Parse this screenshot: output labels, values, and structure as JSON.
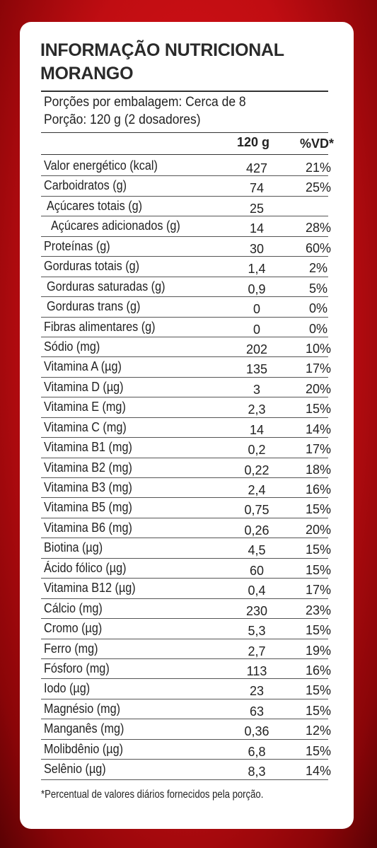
{
  "title": {
    "line1": "INFORMAÇÃO NUTRICIONAL",
    "line2": "MORANGO"
  },
  "portion": {
    "line1": "Porções por embalagem: Cerca de 8",
    "line2": "Porção: 120 g (2 dosadores)"
  },
  "header": {
    "qty": "120 g",
    "vd": "%VD*"
  },
  "rows": [
    {
      "name": "Valor energético (kcal)",
      "qty": "427",
      "vd": "21%"
    },
    {
      "name": "Carboidratos (g)",
      "qty": "74",
      "vd": "25%"
    },
    {
      "name": "Açúcares totais (g)",
      "qty": "25",
      "vd": ""
    },
    {
      "name": "Açúcares adicionados (g)",
      "qty": "14",
      "vd": "28%"
    },
    {
      "name": "Proteínas (g)",
      "qty": "30",
      "vd": "60%"
    },
    {
      "name": "Gorduras totais (g)",
      "qty": "1,4",
      "vd": "2%"
    },
    {
      "name": "Gorduras saturadas (g)",
      "qty": "0,9",
      "vd": "5%"
    },
    {
      "name": "Gorduras trans (g)",
      "qty": "0",
      "vd": "0%"
    },
    {
      "name": "Fibras alimentares (g)",
      "qty": "0",
      "vd": "0%"
    },
    {
      "name": "Sódio (mg)",
      "qty": "202",
      "vd": "10%"
    },
    {
      "name": "Vitamina A (µg)",
      "qty": "135",
      "vd": "17%"
    },
    {
      "name": "Vitamina D (µg)",
      "qty": "3",
      "vd": "20%"
    },
    {
      "name": "Vitamina E (mg)",
      "qty": "2,3",
      "vd": "15%"
    },
    {
      "name": "Vitamina C (mg)",
      "qty": "14",
      "vd": "14%"
    },
    {
      "name": "Vitamina B1 (mg)",
      "qty": "0,2",
      "vd": "17%"
    },
    {
      "name": "Vitamina B2 (mg)",
      "qty": "0,22",
      "vd": "18%"
    },
    {
      "name": "Vitamina B3 (mg)",
      "qty": "2,4",
      "vd": "16%"
    },
    {
      "name": "Vitamina B5 (mg)",
      "qty": "0,75",
      "vd": "15%"
    },
    {
      "name": "Vitamina B6 (mg)",
      "qty": "0,26",
      "vd": "20%"
    },
    {
      "name": "Biotina (µg)",
      "qty": "4,5",
      "vd": "15%"
    },
    {
      "name": "Ácido fólico (µg)",
      "qty": "60",
      "vd": "15%"
    },
    {
      "name": "Vitamina B12 (µg)",
      "qty": "0,4",
      "vd": "17%"
    },
    {
      "name": "Cálcio (mg)",
      "qty": "230",
      "vd": "23%"
    },
    {
      "name": "Cromo (µg)",
      "qty": "5,3",
      "vd": "15%"
    },
    {
      "name": "Ferro (mg)",
      "qty": "2,7",
      "vd": "19%"
    },
    {
      "name": "Fósforo (mg)",
      "qty": "113",
      "vd": "16%"
    },
    {
      "name": "Iodo (µg)",
      "qty": "23",
      "vd": "15%"
    },
    {
      "name": "Magnésio (mg)",
      "qty": "63",
      "vd": "15%"
    },
    {
      "name": "Manganês (mg)",
      "qty": "0,36",
      "vd": "12%"
    },
    {
      "name": "Molibdênio (µg)",
      "qty": "6,8",
      "vd": "15%"
    },
    {
      "name": "Selênio (µg)",
      "qty": "8,3",
      "vd": "14%"
    }
  ],
  "footnote": "*Percentual de valores diários fornecidos pela porção."
}
